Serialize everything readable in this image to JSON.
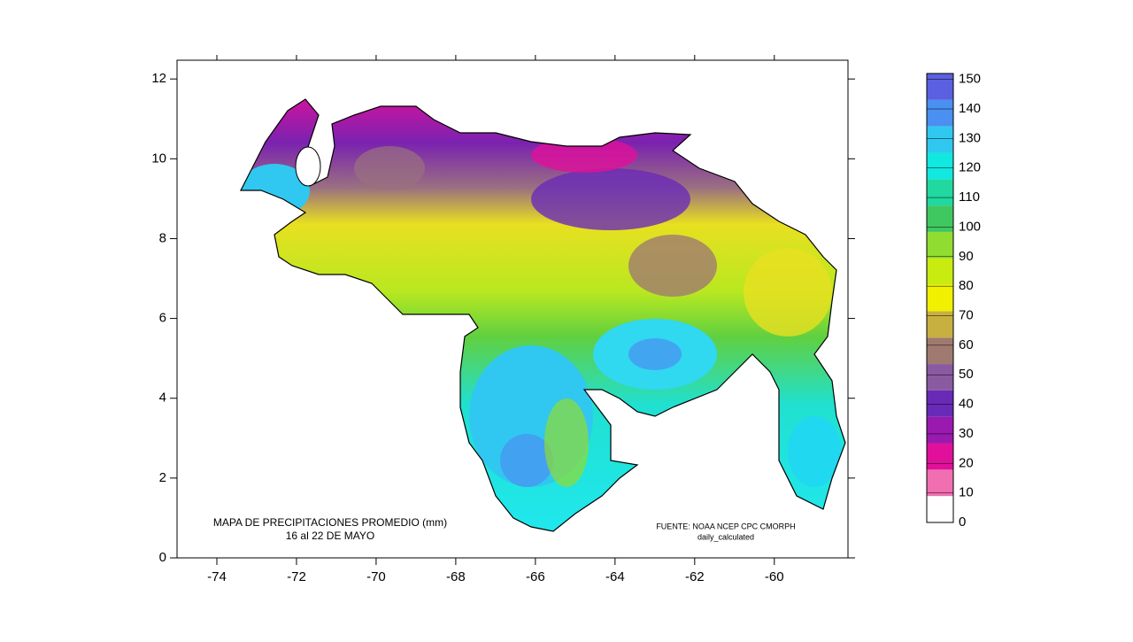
{
  "map": {
    "caption": {
      "title": "MAPA DE PRECIPITACIONES PROMEDIO (mm)",
      "period": "16 al 22 DE MAYO"
    },
    "source": {
      "line1": "FUENTE: NOAA NCEP CPC CMORPH",
      "line2": "daily_calculated"
    },
    "xlim": [
      -75,
      -58.15
    ],
    "ylim": [
      0,
      12.47
    ],
    "xticks": [
      -74,
      -72,
      -70,
      -68,
      -66,
      -64,
      -62,
      -60
    ],
    "yticks": [
      0,
      2,
      4,
      6,
      8,
      10,
      12
    ],
    "colorbar": {
      "lim": [
        0,
        152
      ],
      "ticks": [
        0,
        10,
        20,
        30,
        40,
        50,
        60,
        70,
        80,
        90,
        100,
        110,
        120,
        130,
        140,
        150
      ],
      "colors": [
        "#ffffff",
        "#f06fb0",
        "#e0109a",
        "#9a1ab0",
        "#6a2ab8",
        "#8a5aa0",
        "#a07a70",
        "#c8b040",
        "#f0f000",
        "#c8ec10",
        "#90dc30",
        "#40c860",
        "#20d8a0",
        "#10e8e0",
        "#30c8f0",
        "#4a90f0",
        "#5a60e0"
      ]
    }
  }
}
